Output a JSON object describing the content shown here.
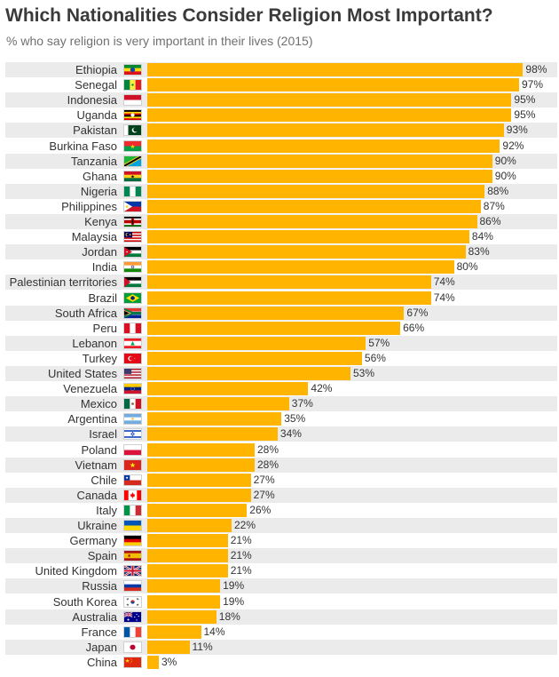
{
  "header": {
    "title": "Which Nationalities Consider Religion Most Important?",
    "subtitle": "% who say religion is very important in their lives (2015)"
  },
  "chart_data": {
    "type": "bar",
    "orientation": "horizontal",
    "title": "Which Nationalities Consider Religion Most Important?",
    "subtitle": "% who say religion is very important in their lives (2015)",
    "value_suffix": "%",
    "xlim": [
      0,
      100
    ],
    "bar_color": "#ffb400",
    "categories": [
      "Ethiopia",
      "Senegal",
      "Indonesia",
      "Uganda",
      "Pakistan",
      "Burkina Faso",
      "Tanzania",
      "Ghana",
      "Nigeria",
      "Philippines",
      "Kenya",
      "Malaysia",
      "Jordan",
      "India",
      "Palestinian territories",
      "Brazil",
      "South Africa",
      "Peru",
      "Lebanon",
      "Turkey",
      "United States",
      "Venezuela",
      "Mexico",
      "Argentina",
      "Israel",
      "Poland",
      "Vietnam",
      "Chile",
      "Canada",
      "Italy",
      "Ukraine",
      "Germany",
      "Spain",
      "United Kingdom",
      "Russia",
      "South Korea",
      "Australia",
      "France",
      "Japan",
      "China"
    ],
    "values": [
      98,
      97,
      95,
      95,
      93,
      92,
      90,
      90,
      88,
      87,
      86,
      84,
      83,
      80,
      74,
      74,
      67,
      66,
      57,
      56,
      53,
      42,
      37,
      35,
      34,
      28,
      28,
      27,
      27,
      26,
      22,
      21,
      21,
      21,
      19,
      19,
      18,
      14,
      11,
      3
    ],
    "flag_icons": [
      "ethiopia-flag-icon",
      "senegal-flag-icon",
      "indonesia-flag-icon",
      "uganda-flag-icon",
      "pakistan-flag-icon",
      "burkina-faso-flag-icon",
      "tanzania-flag-icon",
      "ghana-flag-icon",
      "nigeria-flag-icon",
      "philippines-flag-icon",
      "kenya-flag-icon",
      "malaysia-flag-icon",
      "jordan-flag-icon",
      "india-flag-icon",
      "palestine-flag-icon",
      "brazil-flag-icon",
      "south-africa-flag-icon",
      "peru-flag-icon",
      "lebanon-flag-icon",
      "turkey-flag-icon",
      "united-states-flag-icon",
      "venezuela-flag-icon",
      "mexico-flag-icon",
      "argentina-flag-icon",
      "israel-flag-icon",
      "poland-flag-icon",
      "vietnam-flag-icon",
      "chile-flag-icon",
      "canada-flag-icon",
      "italy-flag-icon",
      "ukraine-flag-icon",
      "germany-flag-icon",
      "spain-flag-icon",
      "united-kingdom-flag-icon",
      "russia-flag-icon",
      "south-korea-flag-icon",
      "australia-flag-icon",
      "france-flag-icon",
      "japan-flag-icon",
      "china-flag-icon"
    ]
  }
}
